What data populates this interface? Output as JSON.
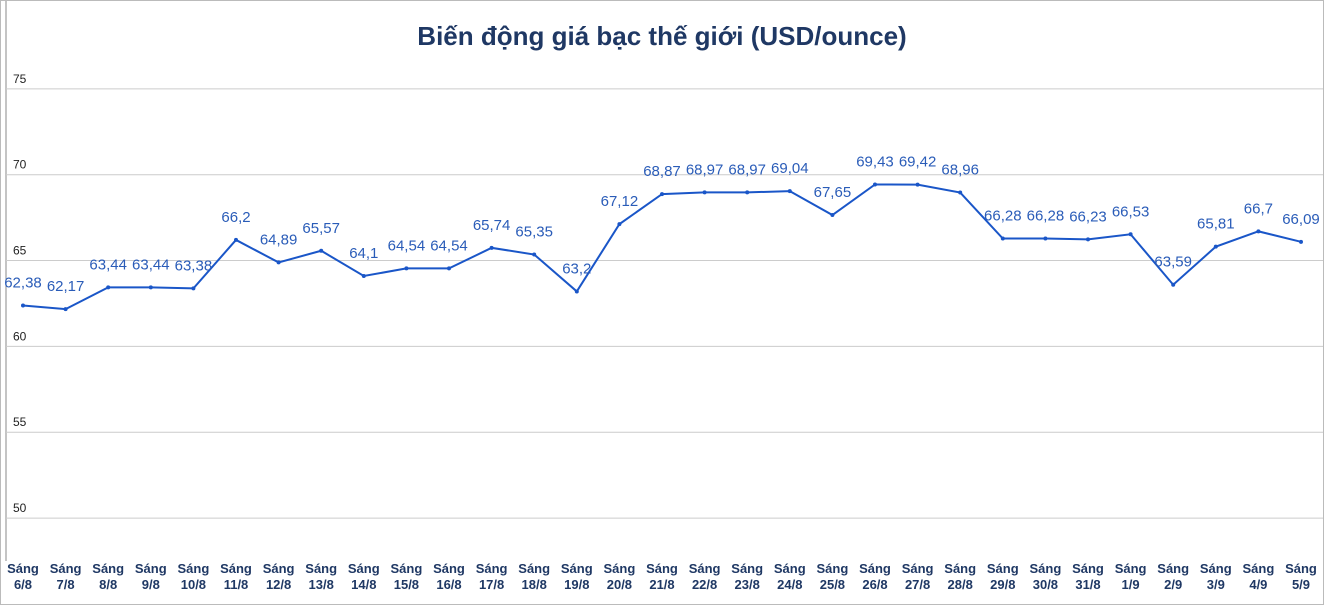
{
  "chart_data": {
    "type": "line",
    "title": "Biến động giá bạc thế giới (USD/ounce)",
    "categories": [
      "Sáng 6/8",
      "Sáng 7/8",
      "Sáng 8/8",
      "Sáng 9/8",
      "Sáng 10/8",
      "Sáng 11/8",
      "Sáng 12/8",
      "Sáng 13/8",
      "Sáng 14/8",
      "Sáng 15/8",
      "Sáng 16/8",
      "Sáng 17/8",
      "Sáng 18/8",
      "Sáng 19/8",
      "Sáng 20/8",
      "Sáng 21/8",
      "Sáng 22/8",
      "Sáng 23/8",
      "Sáng 24/8",
      "Sáng 25/8",
      "Sáng 26/8",
      "Sáng 27/8",
      "Sáng 28/8",
      "Sáng 29/8",
      "Sáng 30/8",
      "Sáng 31/8",
      "Sáng 1/9",
      "Sáng 2/9",
      "Sáng 3/9",
      "Sáng 4/9",
      "Sáng 5/9"
    ],
    "values": [
      62.38,
      62.17,
      63.44,
      63.44,
      63.38,
      66.2,
      64.89,
      65.57,
      64.1,
      64.54,
      64.54,
      65.74,
      65.35,
      63.2,
      67.12,
      68.87,
      68.97,
      68.97,
      69.04,
      67.65,
      69.43,
      69.42,
      68.96,
      66.28,
      66.28,
      66.23,
      66.53,
      63.59,
      65.81,
      66.7,
      66.09
    ],
    "value_labels": [
      "62,38",
      "62,17",
      "63,44",
      "63,44",
      "63,38",
      "66,2",
      "64,89",
      "65,57",
      "64,1",
      "64,54",
      "64,54",
      "65,74",
      "65,35",
      "63,2",
      "67,12",
      "68,87",
      "68,97",
      "68,97",
      "69,04",
      "67,65",
      "69,43",
      "69,42",
      "68,96",
      "66,28",
      "66,28",
      "66,23",
      "66,53",
      "63,59",
      "65,81",
      "66,7",
      "66,09"
    ],
    "color": "#1a56c8",
    "ylim": [
      47.5,
      80
    ],
    "yticks": [
      50,
      55,
      60,
      65,
      70,
      75
    ],
    "grid": true
  }
}
